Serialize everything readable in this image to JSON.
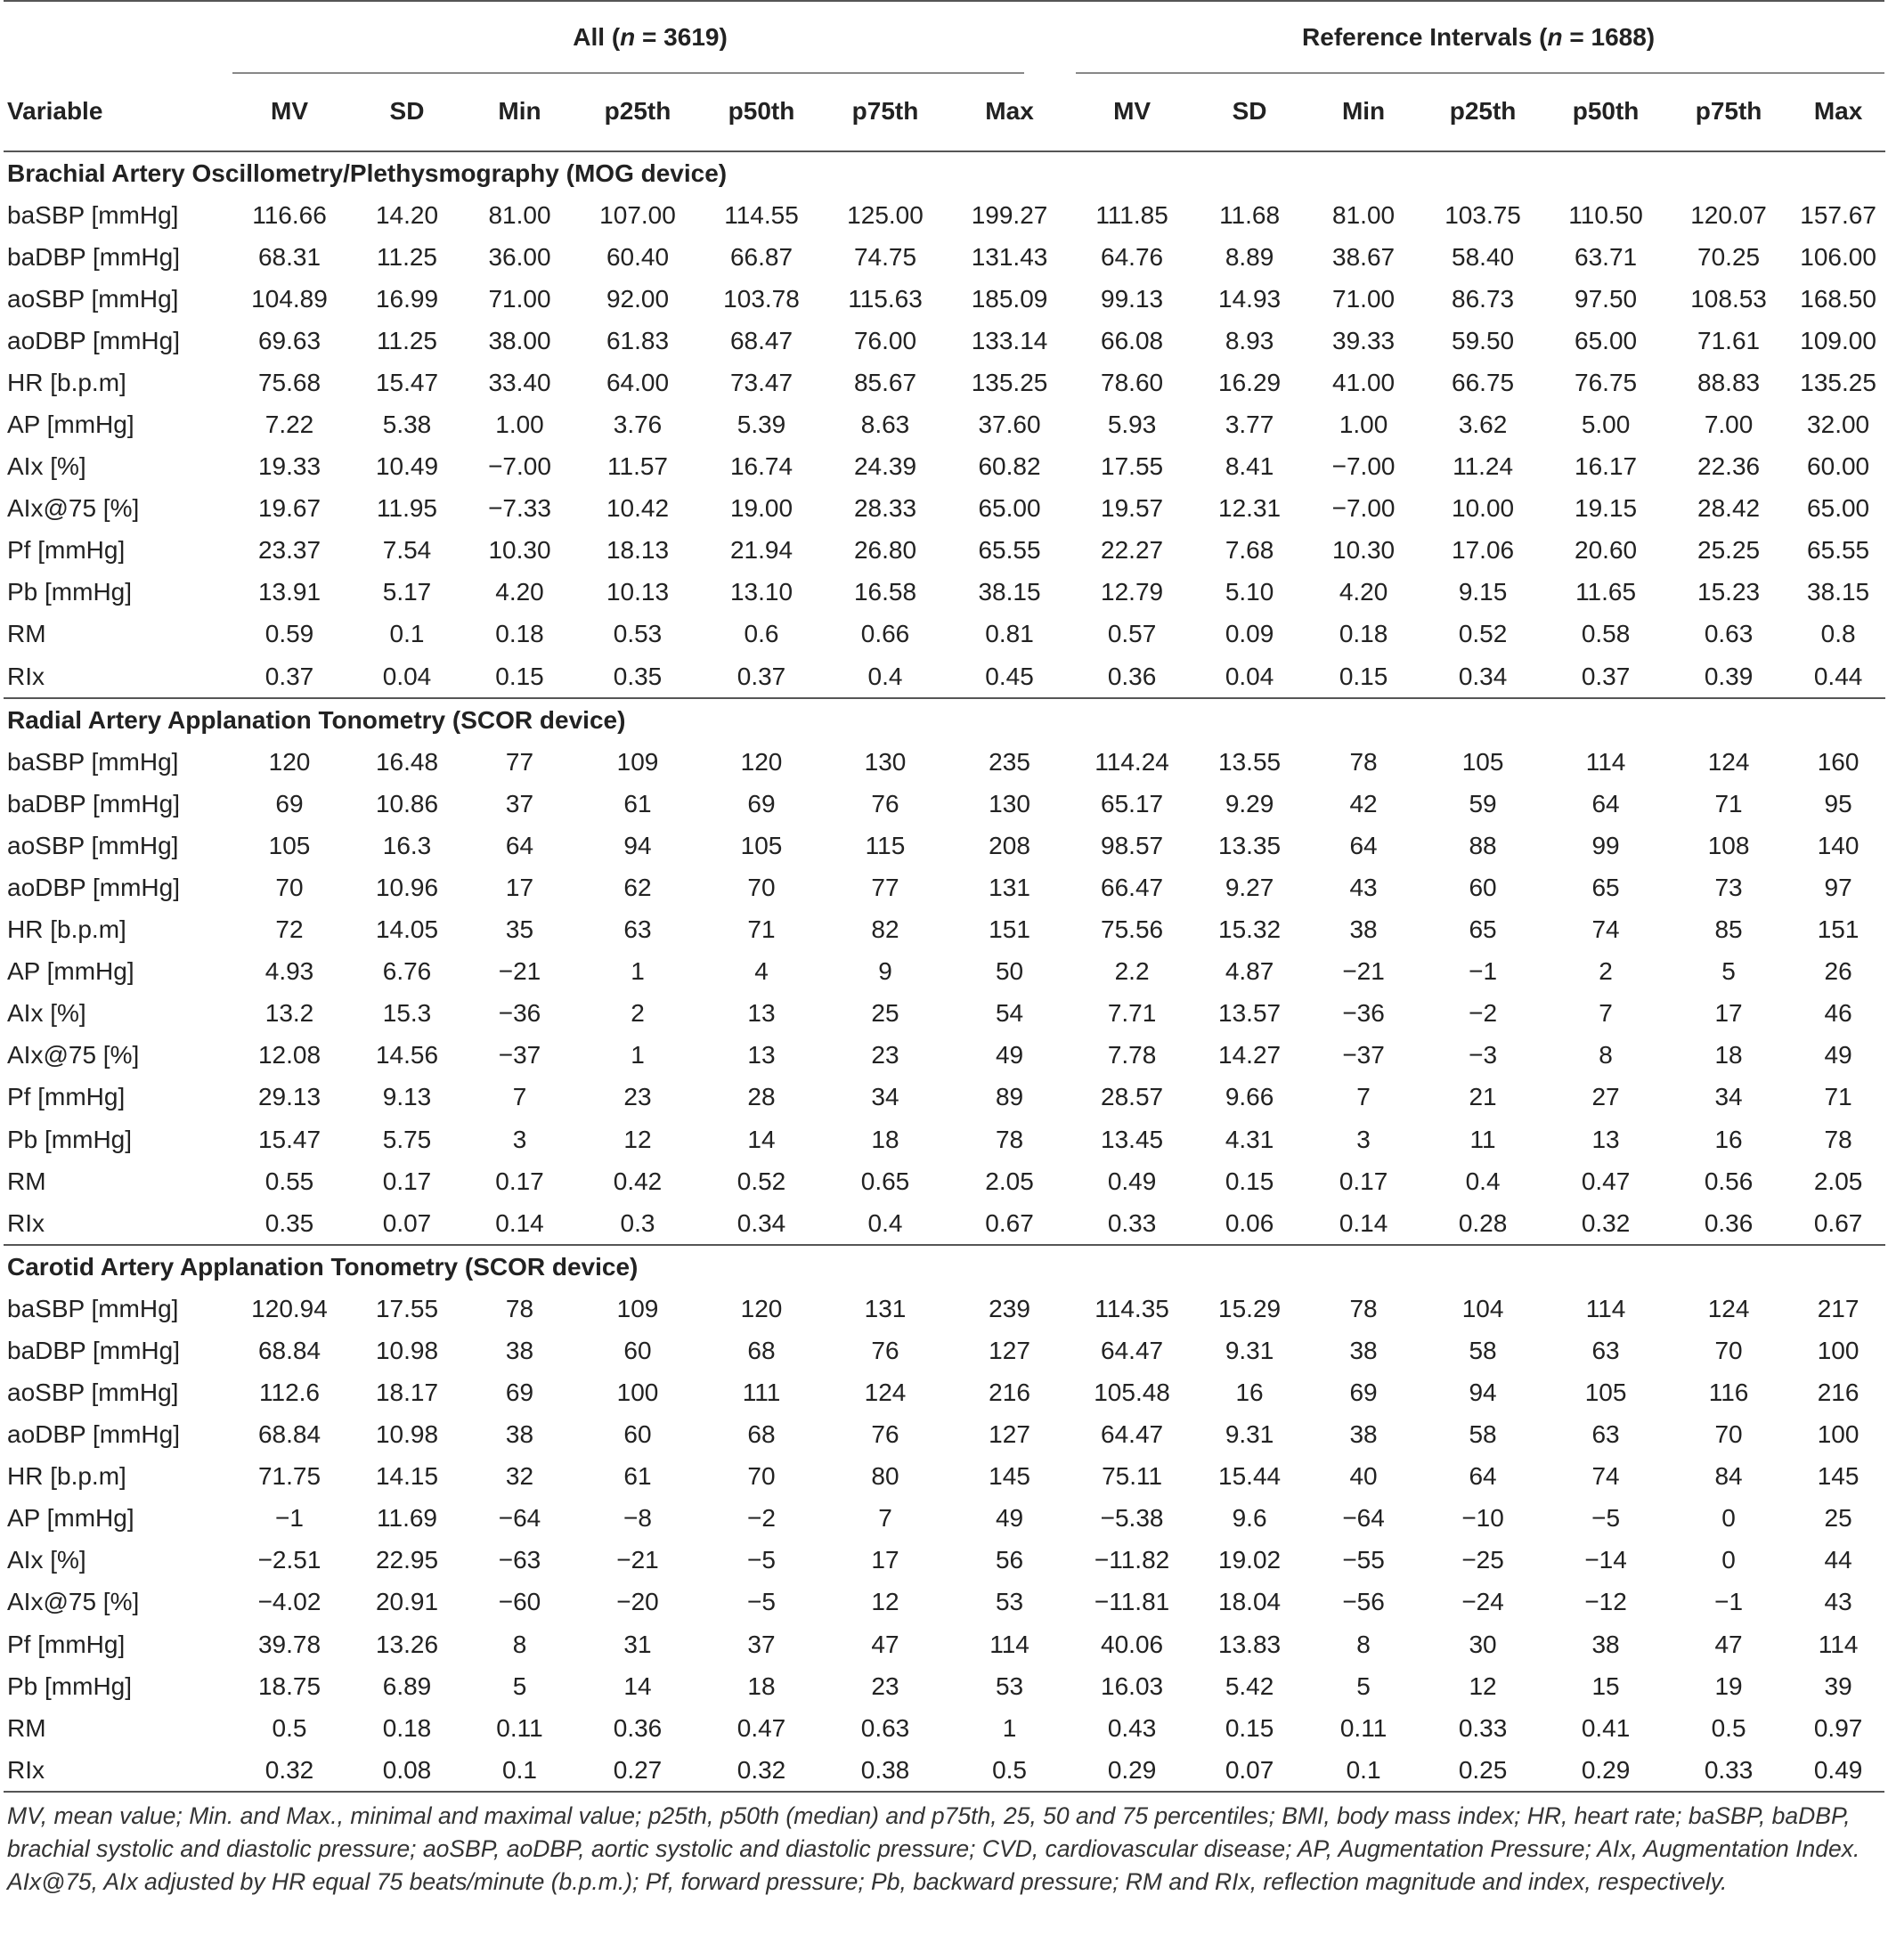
{
  "header": {
    "variable_label": "Variable",
    "group_all": "All (n = 3619)",
    "group_ref": "Reference Intervals (n = 1688)",
    "columns": [
      "MV",
      "SD",
      "Min",
      "p25th",
      "p50th",
      "p75th",
      "Max"
    ]
  },
  "sections": [
    {
      "title": "Brachial Artery Oscillometry/Plethysmography (MOG device)",
      "rows": [
        [
          "baSBP [mmHg]",
          "116.66",
          "14.20",
          "81.00",
          "107.00",
          "114.55",
          "125.00",
          "199.27",
          "111.85",
          "11.68",
          "81.00",
          "103.75",
          "110.50",
          "120.07",
          "157.67"
        ],
        [
          "baDBP [mmHg]",
          "68.31",
          "11.25",
          "36.00",
          "60.40",
          "66.87",
          "74.75",
          "131.43",
          "64.76",
          "8.89",
          "38.67",
          "58.40",
          "63.71",
          "70.25",
          "106.00"
        ],
        [
          "aoSBP [mmHg]",
          "104.89",
          "16.99",
          "71.00",
          "92.00",
          "103.78",
          "115.63",
          "185.09",
          "99.13",
          "14.93",
          "71.00",
          "86.73",
          "97.50",
          "108.53",
          "168.50"
        ],
        [
          "aoDBP [mmHg]",
          "69.63",
          "11.25",
          "38.00",
          "61.83",
          "68.47",
          "76.00",
          "133.14",
          "66.08",
          "8.93",
          "39.33",
          "59.50",
          "65.00",
          "71.61",
          "109.00"
        ],
        [
          "HR [b.p.m]",
          "75.68",
          "15.47",
          "33.40",
          "64.00",
          "73.47",
          "85.67",
          "135.25",
          "78.60",
          "16.29",
          "41.00",
          "66.75",
          "76.75",
          "88.83",
          "135.25"
        ],
        [
          "AP [mmHg]",
          "7.22",
          "5.38",
          "1.00",
          "3.76",
          "5.39",
          "8.63",
          "37.60",
          "5.93",
          "3.77",
          "1.00",
          "3.62",
          "5.00",
          "7.00",
          "32.00"
        ],
        [
          "AIx [%]",
          "19.33",
          "10.49",
          "−7.00",
          "11.57",
          "16.74",
          "24.39",
          "60.82",
          "17.55",
          "8.41",
          "−7.00",
          "11.24",
          "16.17",
          "22.36",
          "60.00"
        ],
        [
          "AIx@75 [%]",
          "19.67",
          "11.95",
          "−7.33",
          "10.42",
          "19.00",
          "28.33",
          "65.00",
          "19.57",
          "12.31",
          "−7.00",
          "10.00",
          "19.15",
          "28.42",
          "65.00"
        ],
        [
          "Pf [mmHg]",
          "23.37",
          "7.54",
          "10.30",
          "18.13",
          "21.94",
          "26.80",
          "65.55",
          "22.27",
          "7.68",
          "10.30",
          "17.06",
          "20.60",
          "25.25",
          "65.55"
        ],
        [
          "Pb [mmHg]",
          "13.91",
          "5.17",
          "4.20",
          "10.13",
          "13.10",
          "16.58",
          "38.15",
          "12.79",
          "5.10",
          "4.20",
          "9.15",
          "11.65",
          "15.23",
          "38.15"
        ],
        [
          "RM",
          "0.59",
          "0.1",
          "0.18",
          "0.53",
          "0.6",
          "0.66",
          "0.81",
          "0.57",
          "0.09",
          "0.18",
          "0.52",
          "0.58",
          "0.63",
          "0.8"
        ],
        [
          "RIx",
          "0.37",
          "0.04",
          "0.15",
          "0.35",
          "0.37",
          "0.4",
          "0.45",
          "0.36",
          "0.04",
          "0.15",
          "0.34",
          "0.37",
          "0.39",
          "0.44"
        ]
      ]
    },
    {
      "title": "Radial Artery Applanation Tonometry (SCOR device)",
      "rows": [
        [
          "baSBP [mmHg]",
          "120",
          "16.48",
          "77",
          "109",
          "120",
          "130",
          "235",
          "114.24",
          "13.55",
          "78",
          "105",
          "114",
          "124",
          "160"
        ],
        [
          "baDBP [mmHg]",
          "69",
          "10.86",
          "37",
          "61",
          "69",
          "76",
          "130",
          "65.17",
          "9.29",
          "42",
          "59",
          "64",
          "71",
          "95"
        ],
        [
          "aoSBP [mmHg]",
          "105",
          "16.3",
          "64",
          "94",
          "105",
          "115",
          "208",
          "98.57",
          "13.35",
          "64",
          "88",
          "99",
          "108",
          "140"
        ],
        [
          "aoDBP [mmHg]",
          "70",
          "10.96",
          "17",
          "62",
          "70",
          "77",
          "131",
          "66.47",
          "9.27",
          "43",
          "60",
          "65",
          "73",
          "97"
        ],
        [
          "HR [b.p.m]",
          "72",
          "14.05",
          "35",
          "63",
          "71",
          "82",
          "151",
          "75.56",
          "15.32",
          "38",
          "65",
          "74",
          "85",
          "151"
        ],
        [
          "AP [mmHg]",
          "4.93",
          "6.76",
          "−21",
          "1",
          "4",
          "9",
          "50",
          "2.2",
          "4.87",
          "−21",
          "−1",
          "2",
          "5",
          "26"
        ],
        [
          "AIx [%]",
          "13.2",
          "15.3",
          "−36",
          "2",
          "13",
          "25",
          "54",
          "7.71",
          "13.57",
          "−36",
          "−2",
          "7",
          "17",
          "46"
        ],
        [
          "AIx@75 [%]",
          "12.08",
          "14.56",
          "−37",
          "1",
          "13",
          "23",
          "49",
          "7.78",
          "14.27",
          "−37",
          "−3",
          "8",
          "18",
          "49"
        ],
        [
          "Pf [mmHg]",
          "29.13",
          "9.13",
          "7",
          "23",
          "28",
          "34",
          "89",
          "28.57",
          "9.66",
          "7",
          "21",
          "27",
          "34",
          "71"
        ],
        [
          "Pb [mmHg]",
          "15.47",
          "5.75",
          "3",
          "12",
          "14",
          "18",
          "78",
          "13.45",
          "4.31",
          "3",
          "11",
          "13",
          "16",
          "78"
        ],
        [
          "RM",
          "0.55",
          "0.17",
          "0.17",
          "0.42",
          "0.52",
          "0.65",
          "2.05",
          "0.49",
          "0.15",
          "0.17",
          "0.4",
          "0.47",
          "0.56",
          "2.05"
        ],
        [
          "RIx",
          "0.35",
          "0.07",
          "0.14",
          "0.3",
          "0.34",
          "0.4",
          "0.67",
          "0.33",
          "0.06",
          "0.14",
          "0.28",
          "0.32",
          "0.36",
          "0.67"
        ]
      ]
    },
    {
      "title": "Carotid Artery Applanation Tonometry (SCOR device)",
      "rows": [
        [
          "baSBP [mmHg]",
          "120.94",
          "17.55",
          "78",
          "109",
          "120",
          "131",
          "239",
          "114.35",
          "15.29",
          "78",
          "104",
          "114",
          "124",
          "217"
        ],
        [
          "baDBP [mmHg]",
          "68.84",
          "10.98",
          "38",
          "60",
          "68",
          "76",
          "127",
          "64.47",
          "9.31",
          "38",
          "58",
          "63",
          "70",
          "100"
        ],
        [
          "aoSBP [mmHg]",
          "112.6",
          "18.17",
          "69",
          "100",
          "111",
          "124",
          "216",
          "105.48",
          "16",
          "69",
          "94",
          "105",
          "116",
          "216"
        ],
        [
          "aoDBP [mmHg]",
          "68.84",
          "10.98",
          "38",
          "60",
          "68",
          "76",
          "127",
          "64.47",
          "9.31",
          "38",
          "58",
          "63",
          "70",
          "100"
        ],
        [
          "HR [b.p.m]",
          "71.75",
          "14.15",
          "32",
          "61",
          "70",
          "80",
          "145",
          "75.11",
          "15.44",
          "40",
          "64",
          "74",
          "84",
          "145"
        ],
        [
          "AP [mmHg]",
          "−1",
          "11.69",
          "−64",
          "−8",
          "−2",
          "7",
          "49",
          "−5.38",
          "9.6",
          "−64",
          "−10",
          "−5",
          "0",
          "25"
        ],
        [
          "AIx [%]",
          "−2.51",
          "22.95",
          "−63",
          "−21",
          "−5",
          "17",
          "56",
          "−11.82",
          "19.02",
          "−55",
          "−25",
          "−14",
          "0",
          "44"
        ],
        [
          "AIx@75 [%]",
          "−4.02",
          "20.91",
          "−60",
          "−20",
          "−5",
          "12",
          "53",
          "−11.81",
          "18.04",
          "−56",
          "−24",
          "−12",
          "−1",
          "43"
        ],
        [
          "Pf [mmHg]",
          "39.78",
          "13.26",
          "8",
          "31",
          "37",
          "47",
          "114",
          "40.06",
          "13.83",
          "8",
          "30",
          "38",
          "47",
          "114"
        ],
        [
          "Pb [mmHg]",
          "18.75",
          "6.89",
          "5",
          "14",
          "18",
          "23",
          "53",
          "16.03",
          "5.42",
          "5",
          "12",
          "15",
          "19",
          "39"
        ],
        [
          "RM",
          "0.5",
          "0.18",
          "0.11",
          "0.36",
          "0.47",
          "0.63",
          "1",
          "0.43",
          "0.15",
          "0.11",
          "0.33",
          "0.41",
          "0.5",
          "0.97"
        ],
        [
          "RIx",
          "0.32",
          "0.08",
          "0.1",
          "0.27",
          "0.32",
          "0.38",
          "0.5",
          "0.29",
          "0.07",
          "0.1",
          "0.25",
          "0.29",
          "0.33",
          "0.49"
        ]
      ]
    }
  ],
  "footnote": "MV, mean value; Min. and Max., minimal and maximal value; p25th, p50th (median) and p75th, 25, 50 and 75 percentiles; BMI, body mass index; HR, heart rate; baSBP, baDBP, brachial systolic and diastolic pressure; aoSBP, aoDBP, aortic systolic and diastolic pressure; CVD, cardiovascular disease; AP, Augmentation Pressure; AIx, Augmentation Index. AIx@75, AIx adjusted by HR equal 75 beats/minute (b.p.m.); Pf, forward pressure; Pb, backward pressure; RM and RIx, reflection magnitude and index, respectively."
}
